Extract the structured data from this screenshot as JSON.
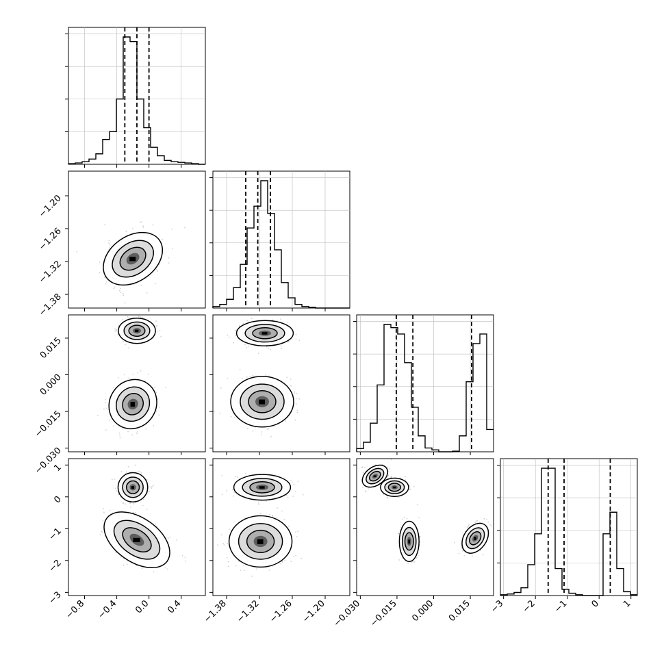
{
  "chart_data": {
    "type": "corner",
    "params": [
      {
        "xlim": [
          -1.0,
          0.7
        ],
        "ylim": [
          -1.38,
          -1.16
        ],
        "ticks": [
          -0.8,
          -0.4,
          0.0,
          0.4
        ],
        "tick_labels": [
          "−0.8",
          "−0.4",
          "0.0",
          "0.4"
        ],
        "quantiles": [
          -0.3,
          -0.15,
          0.0
        ]
      },
      {
        "xlim": [
          -1.405,
          -1.155
        ],
        "ylim": [
          -1.405,
          -1.155
        ],
        "ticks": [
          -1.38,
          -1.32,
          -1.26,
          -1.2
        ],
        "tick_labels": [
          "−1.38",
          "−1.32",
          "−1.26",
          "−1.20"
        ],
        "quantiles": [
          -1.345,
          -1.323,
          -1.3
        ]
      },
      {
        "xlim": [
          -0.0315,
          0.0245
        ],
        "ylim": [
          -0.0315,
          0.0245
        ],
        "ticks": [
          -0.03,
          -0.015,
          0.0,
          0.015
        ],
        "tick_labels": [
          "−0.030",
          "−0.015",
          "0.000",
          "0.015"
        ],
        "quantiles": [
          -0.0153,
          -0.0085,
          0.0155
        ]
      },
      {
        "xlim": [
          -3.1,
          1.2
        ],
        "ylim": [
          -3.1,
          1.2
        ],
        "ticks": [
          -3,
          -2,
          -1,
          0,
          1
        ],
        "tick_labels": [
          "−3",
          "−2",
          "−1",
          "0",
          "1"
        ],
        "quantiles": [
          -1.6,
          -1.1,
          0.35
        ]
      }
    ],
    "histograms": [
      {
        "edges_start": -1.0,
        "bin_width": 0.085,
        "counts": [
          1,
          2,
          4,
          8,
          16,
          38,
          50,
          100,
          195,
          188,
          100,
          56,
          26,
          13,
          6,
          4,
          3,
          2,
          1,
          0
        ]
      },
      {
        "edges_start": -1.405,
        "bin_width": 0.0125,
        "counts": [
          2,
          5,
          12,
          28,
          60,
          110,
          140,
          175,
          130,
          80,
          35,
          14,
          5,
          2,
          1,
          0,
          0,
          0,
          0,
          0
        ]
      },
      {
        "edges_start": -0.0315,
        "bin_width": 0.0028,
        "counts": [
          5,
          15,
          45,
          105,
          200,
          195,
          185,
          140,
          70,
          25,
          6,
          3,
          0,
          0,
          1,
          25,
          110,
          170,
          185,
          35
        ]
      },
      {
        "edges_start": -3.1,
        "bin_width": 0.215,
        "counts": [
          1,
          2,
          4,
          10,
          40,
          80,
          165,
          165,
          35,
          8,
          3,
          1,
          0,
          0,
          0,
          80,
          108,
          35,
          5,
          1
        ]
      }
    ],
    "pairs": [
      {
        "x": 0,
        "y": 1,
        "modes": [
          {
            "cx": -0.2,
            "cy": -1.315,
            "rx": 0.35,
            "ry": 0.036,
            "rot": -1,
            "peak": 1.0
          }
        ]
      },
      {
        "x": 0,
        "y": 2,
        "modes": [
          {
            "cx": -0.15,
            "cy": 0.018,
            "rx": 0.2,
            "ry": 0.0045,
            "rot": 0,
            "peak": 0.55
          },
          {
            "cx": -0.2,
            "cy": -0.012,
            "rx": 0.25,
            "ry": 0.009,
            "rot": 1,
            "peak": 0.85
          }
        ]
      },
      {
        "x": 0,
        "y": 3,
        "modes": [
          {
            "cx": -0.2,
            "cy": 0.3,
            "rx": 0.16,
            "ry": 0.4,
            "rot": 0,
            "peak": 0.7
          },
          {
            "cx": -0.15,
            "cy": -1.35,
            "rx": 0.4,
            "ry": 0.6,
            "rot": 1,
            "peak": 0.85
          }
        ]
      },
      {
        "x": 1,
        "y": 2,
        "modes": [
          {
            "cx": -1.31,
            "cy": 0.017,
            "rx": 0.045,
            "ry": 0.0045,
            "rot": 0,
            "peak": 0.55
          },
          {
            "cx": -1.315,
            "cy": -0.011,
            "rx": 0.05,
            "ry": 0.009,
            "rot": 0,
            "peak": 0.85
          }
        ]
      },
      {
        "x": 1,
        "y": 3,
        "modes": [
          {
            "cx": -1.315,
            "cy": 0.3,
            "rx": 0.045,
            "ry": 0.35,
            "rot": 0,
            "peak": 0.6
          },
          {
            "cx": -1.318,
            "cy": -1.4,
            "rx": 0.05,
            "ry": 0.7,
            "rot": 0,
            "peak": 0.9
          }
        ]
      },
      {
        "x": 2,
        "y": 3,
        "modes": [
          {
            "cx": -0.024,
            "cy": 0.65,
            "rx": 0.005,
            "ry": 0.25,
            "rot": -1,
            "peak": 0.45
          },
          {
            "cx": -0.016,
            "cy": 0.3,
            "rx": 0.005,
            "ry": 0.25,
            "rot": 0,
            "peak": 0.6
          },
          {
            "cx": -0.01,
            "cy": -1.4,
            "rx": 0.0035,
            "ry": 0.55,
            "rot": 0,
            "peak": 0.5
          },
          {
            "cx": 0.017,
            "cy": -1.3,
            "rx": 0.004,
            "ry": 0.45,
            "rot": 1,
            "peak": 0.55
          }
        ]
      }
    ]
  }
}
